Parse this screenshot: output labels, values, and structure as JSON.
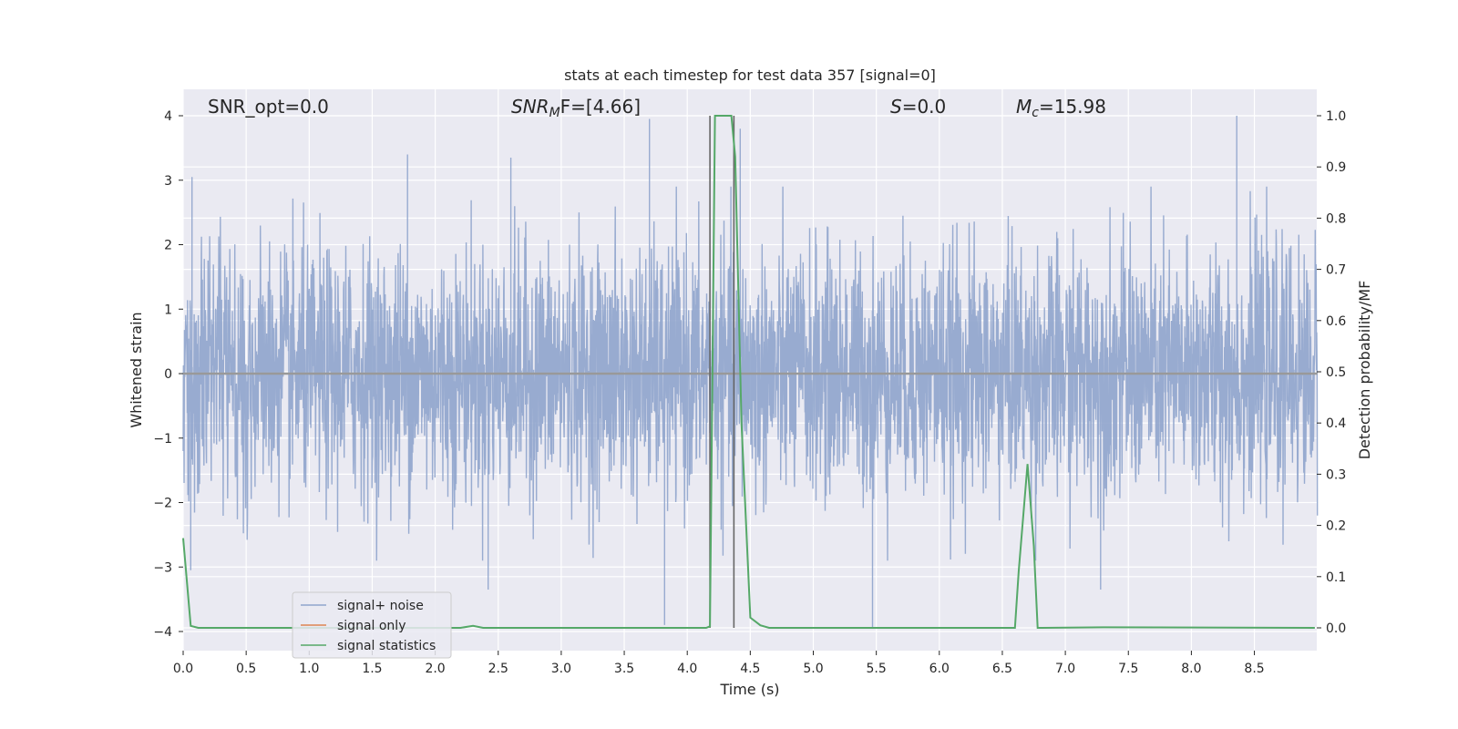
{
  "chart_data": {
    "type": "line",
    "title": "stats at each timestep for test data 357 [signal=0]",
    "xlabel": "Time (s)",
    "ylabel": "Whitened strain",
    "y2label": "Detection probability/MF",
    "xlim": [
      0,
      9.0
    ],
    "ylim": [
      -4.3,
      4.4
    ],
    "y2lim": [
      -0.05,
      1.05
    ],
    "xticks": [
      "0.0",
      "0.5",
      "1.0",
      "1.5",
      "2.0",
      "2.5",
      "3.0",
      "3.5",
      "4.0",
      "4.5",
      "5.0",
      "5.5",
      "6.0",
      "6.5",
      "7.0",
      "7.5",
      "8.0",
      "8.5"
    ],
    "yticks": [
      "4",
      "3",
      "2",
      "1",
      "0",
      "−1",
      "−2",
      "−3",
      "−4"
    ],
    "y2ticks": [
      "1.0",
      "0.9",
      "0.8",
      "0.7",
      "0.6",
      "0.5",
      "0.4",
      "0.3",
      "0.2",
      "0.1",
      "0.0"
    ],
    "grid": true,
    "legend_placement": "lower-left",
    "annotations": {
      "snr_opt": "SNR_opt=0.0",
      "snr_mf_prefix": "SNR",
      "snr_mf_sub": "M",
      "snr_mf_suffix": "F=[4.66]",
      "s_italic": "S",
      "s_value": "=0.0",
      "mc_italic": "M",
      "mc_sub": "c",
      "mc_value": "=15.98"
    },
    "series": [
      {
        "name": "signal+ noise",
        "color": "#8fa4cc",
        "axis": "left",
        "description_values": "whitened noise, amplitude roughly within ±2.5 with spikes",
        "envelope_hint": [
          2.7,
          -2.6
        ],
        "spikes": [
          {
            "x": 0.07,
            "y": 3.05
          },
          {
            "x": 1.78,
            "y": 3.4
          },
          {
            "x": 2.6,
            "y": 3.35
          },
          {
            "x": 3.7,
            "y": 3.95
          },
          {
            "x": 4.42,
            "y": 3.8
          },
          {
            "x": 8.36,
            "y": 4.0
          },
          {
            "x": 2.42,
            "y": -3.35
          },
          {
            "x": 3.82,
            "y": -3.9
          },
          {
            "x": 5.47,
            "y": -3.95
          },
          {
            "x": 7.28,
            "y": -3.35
          },
          {
            "x": 0.06,
            "y": -3.05
          }
        ]
      },
      {
        "name": "signal only",
        "color": "#dd8452",
        "axis": "left",
        "x": [
          0,
          9.0
        ],
        "y": [
          0,
          0
        ]
      },
      {
        "name": "signal statistics",
        "color": "#55a868",
        "axis": "right",
        "x": [
          0.0,
          0.06,
          0.12,
          2.2,
          2.3,
          2.38,
          4.15,
          4.18,
          4.22,
          4.25,
          4.35,
          4.38,
          4.43,
          4.5,
          4.58,
          4.65,
          6.6,
          6.63,
          6.7,
          6.75,
          6.78,
          6.82,
          7.3,
          8.98
        ],
        "y": [
          0.175,
          0.004,
          0.0,
          0.0,
          0.004,
          0.0,
          0.0,
          0.003,
          1.0,
          1.0,
          1.0,
          0.92,
          0.4,
          0.02,
          0.005,
          0.0,
          0.0,
          0.11,
          0.32,
          0.16,
          0.0,
          0.0,
          0.001,
          0.0
        ]
      }
    ],
    "vlines": [
      {
        "x": 4.18,
        "color": "#666666"
      },
      {
        "x": 4.37,
        "color": "#666666"
      }
    ]
  }
}
